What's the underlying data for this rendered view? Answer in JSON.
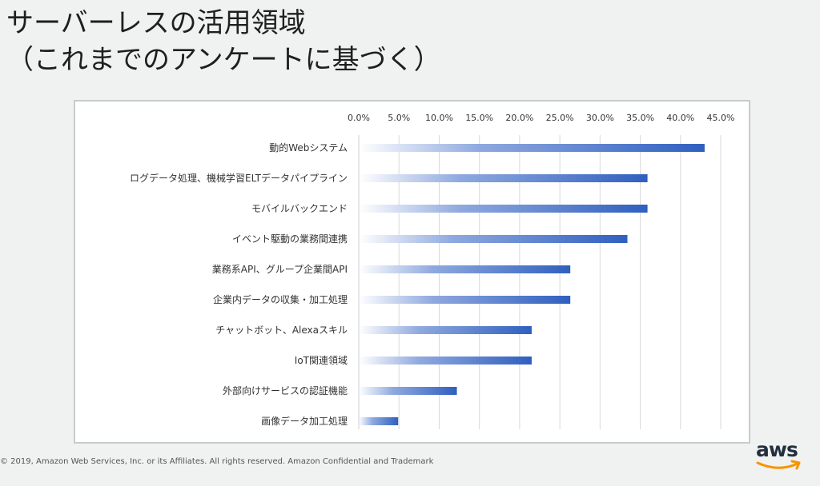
{
  "slide": {
    "title_line1": "サーバーレスの活用領域",
    "title_line2": "（これまでのアンケートに基づく）"
  },
  "footer": {
    "copyright": "© 2019, Amazon Web Services, Inc. or its Affiliates. All rights reserved. Amazon Confidential and Trademark"
  },
  "logo": {
    "text": "aws",
    "icon": "aws-smile-arrow",
    "text_color": "#232f3e",
    "smile_color": "#f79400"
  },
  "chart_data": {
    "type": "bar",
    "orientation": "horizontal",
    "categories": [
      "動的Webシステム",
      "ログデータ処理、機械学習ELTデータパイプライン",
      "モバイルバックエンド",
      "イベント駆動の業務間連携",
      "業務系API、グループ企業間API",
      "企業内データの収集・加工処理",
      "チャットボット、Alexaスキル",
      "IoT関連領域",
      "外部向けサービスの認証機能",
      "画像データ加工処理"
    ],
    "values": [
      43.0,
      35.9,
      35.9,
      33.4,
      26.3,
      26.3,
      21.5,
      21.5,
      12.2,
      4.9
    ],
    "xlim": [
      0,
      45
    ],
    "x_ticks": [
      "0.0%",
      "5.0%",
      "10.0%",
      "15.0%",
      "20.0%",
      "25.0%",
      "30.0%",
      "35.0%",
      "40.0%",
      "45.0%"
    ],
    "x_axis_position": "top",
    "grid": true,
    "bar_color": "#2f5fbf",
    "bar_fill": "gradient"
  }
}
